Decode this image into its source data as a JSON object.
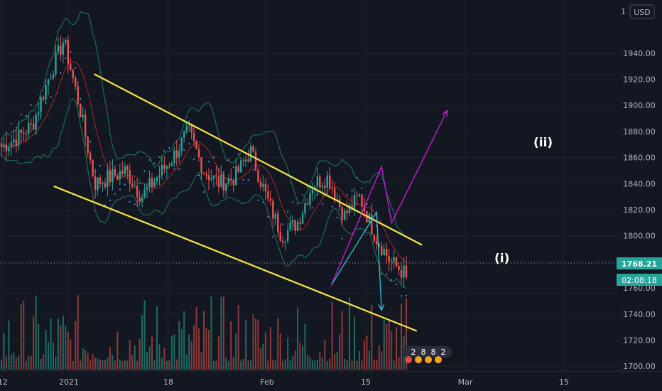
{
  "header": {
    "currency": "USD",
    "corner_digit": "1"
  },
  "price_label": {
    "value": "1768.21",
    "countdown": "02:08:18",
    "color": "#26a69a"
  },
  "annotations": {
    "wave_i": "(i)",
    "wave_ii": "(ii)"
  },
  "events_badge": {
    "digits": [
      "2",
      "8",
      "8",
      "2"
    ]
  },
  "chart_data": {
    "type": "candlestick",
    "x_ticks": [
      "12",
      "2021",
      "18",
      "Feb",
      "15",
      "Mar",
      "15"
    ],
    "y_ticks": [
      1700,
      1720,
      1740,
      1760,
      1780,
      1800,
      1820,
      1840,
      1860,
      1880,
      1900,
      1920,
      1940
    ],
    "y_range": [
      1690,
      1960
    ],
    "last_price": 1768.21,
    "colors": {
      "up": "#26a69a",
      "down": "#ef5350",
      "channel": "#f5e642",
      "projection_i": "#26c6da",
      "projection_ii": "#d21dd8",
      "bands": "#1f7a66",
      "sma": "#a52a2a"
    },
    "channel_lines": [
      {
        "name": "upper",
        "from": [
          "2021-01-06",
          1924
        ],
        "to": [
          "2021-03-12",
          1793
        ]
      },
      {
        "name": "lower",
        "from": [
          "2020-12-29",
          1838
        ],
        "to": [
          "2021-03-11",
          1727
        ]
      }
    ],
    "projection_i": [
      [
        "2021-02-22",
        1762
      ],
      [
        "2021-03-03",
        1818
      ],
      [
        "2021-03-04",
        1743
      ]
    ],
    "projection_ii": [
      [
        "2021-02-22",
        1762
      ],
      [
        "2021-03-04",
        1853
      ],
      [
        "2021-03-06",
        1810
      ],
      [
        "2021-03-17",
        1896
      ]
    ],
    "close_path": [
      [
        1868,
        1870
      ],
      [
        1875,
        1880
      ],
      [
        1885,
        1880
      ],
      [
        1920,
        1945
      ],
      [
        1950,
        1955
      ],
      [
        1900,
        1910
      ],
      [
        1840,
        1830
      ],
      [
        1845,
        1855
      ],
      [
        1850,
        1860
      ],
      [
        1830,
        1840
      ],
      [
        1845,
        1840
      ],
      [
        1860,
        1870
      ],
      [
        1880,
        1860
      ],
      [
        1850,
        1860
      ],
      [
        1840,
        1850
      ],
      [
        1845,
        1870
      ],
      [
        1865,
        1855
      ],
      [
        1830,
        1820
      ],
      [
        1800,
        1790
      ],
      [
        1810,
        1820
      ],
      [
        1840,
        1850
      ],
      [
        1845,
        1840
      ],
      [
        1815,
        1820
      ],
      [
        1830,
        1825
      ],
      [
        1800,
        1790
      ],
      [
        1780,
        1775
      ],
      [
        1770,
        1768.21
      ]
    ]
  }
}
